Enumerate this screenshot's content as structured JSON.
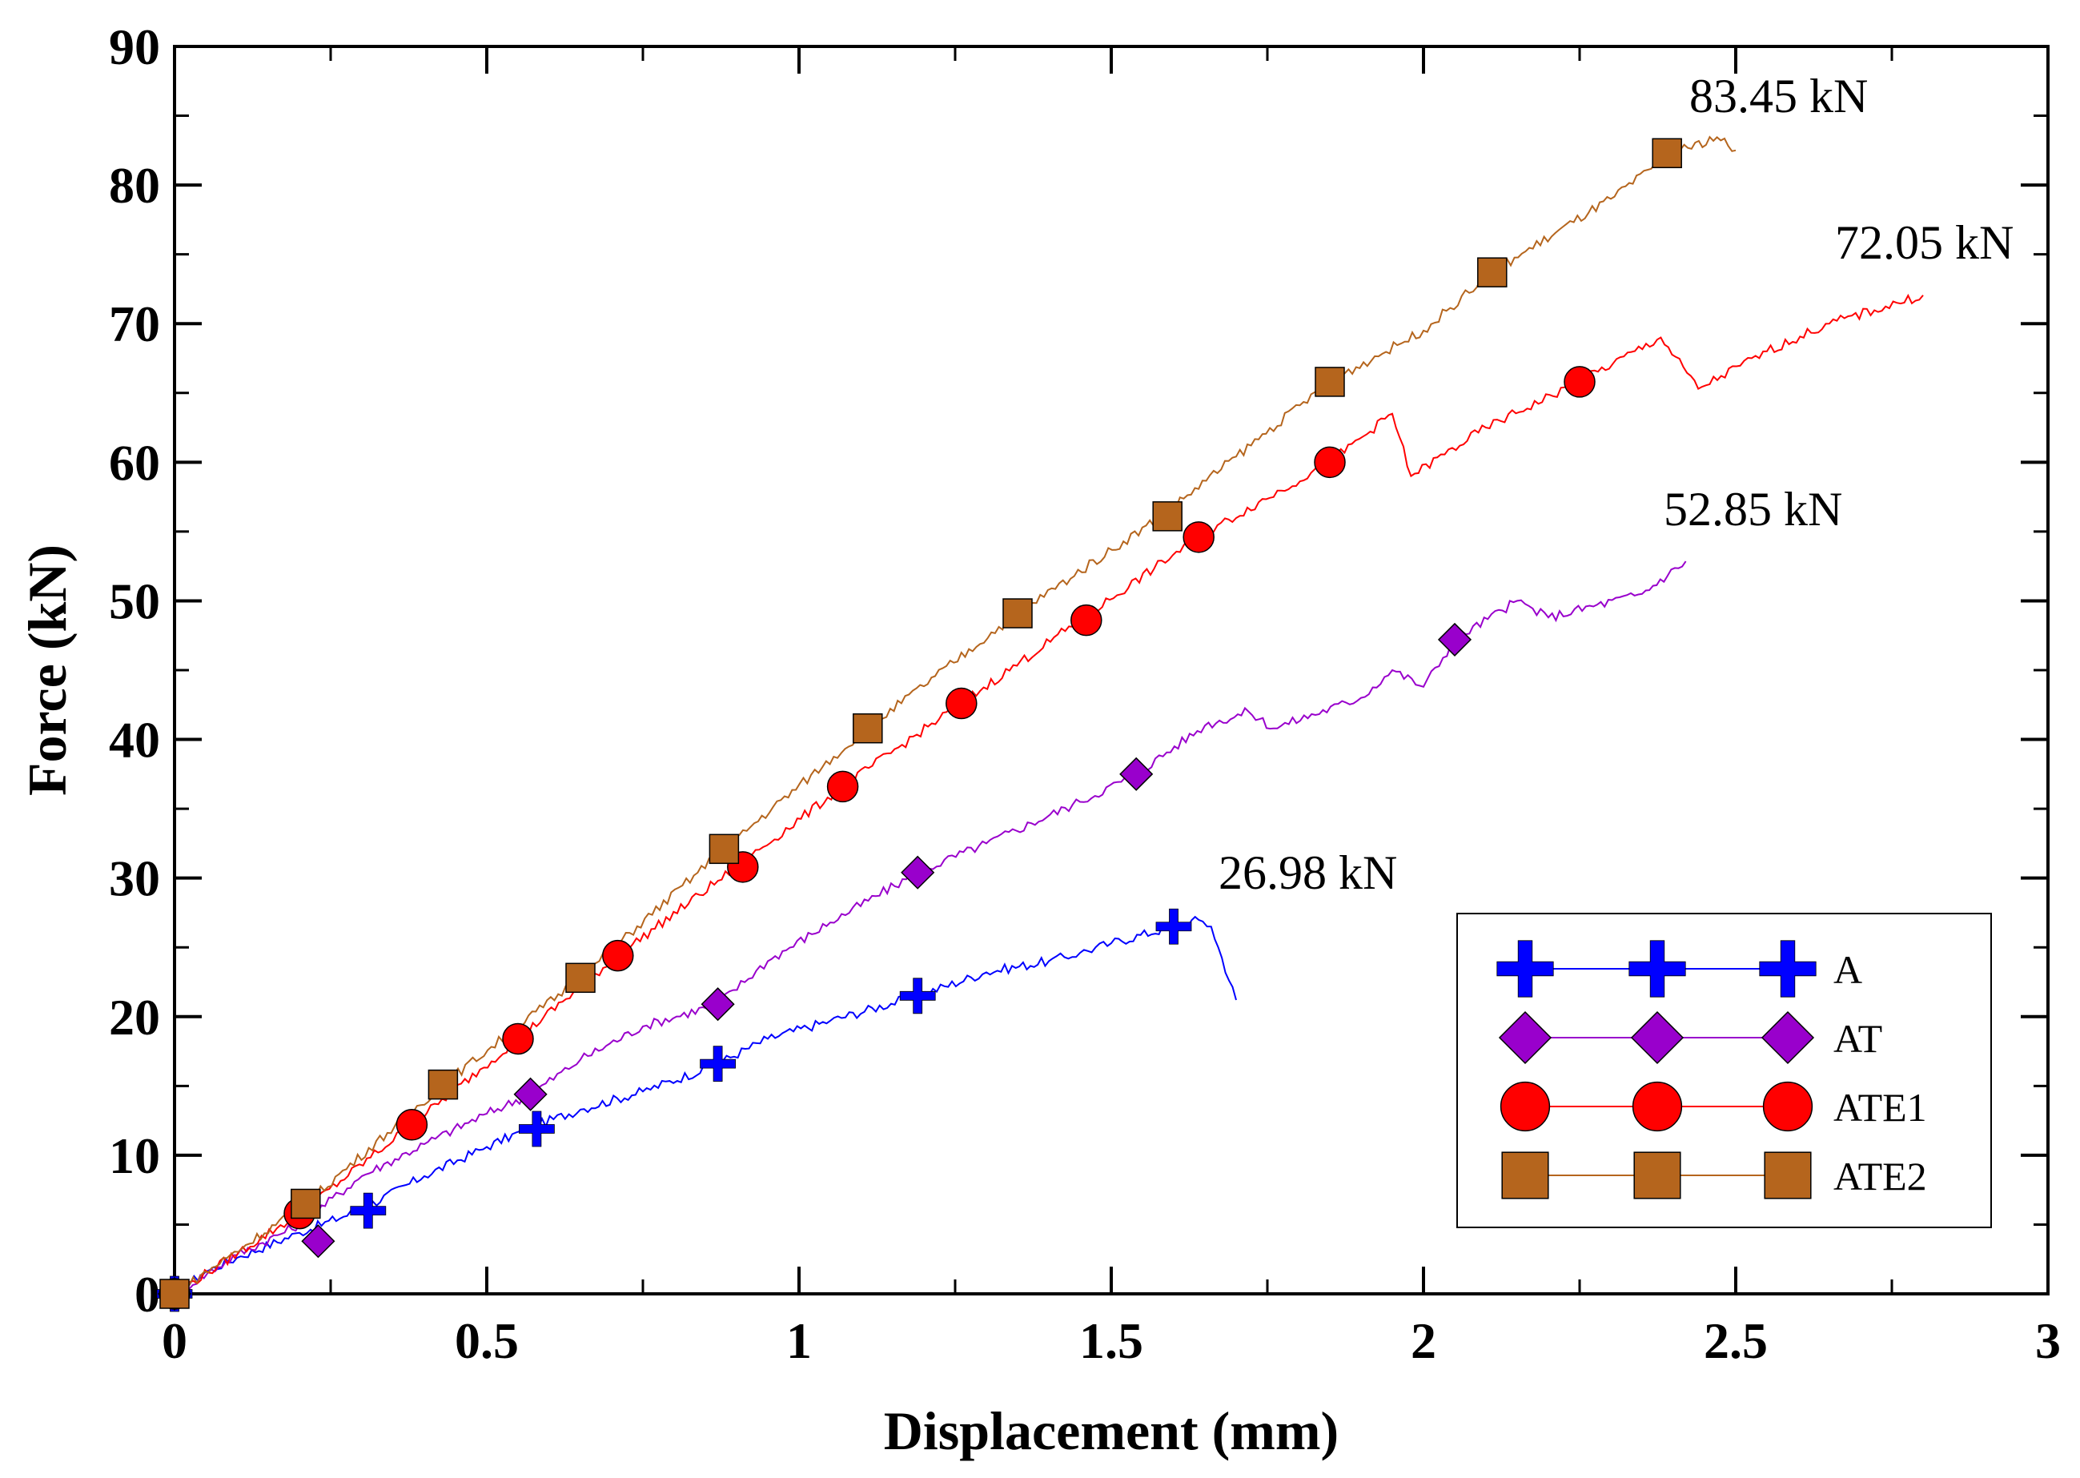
{
  "chart_data": {
    "type": "line",
    "title": "",
    "xlabel": "Displacement (mm)",
    "ylabel": "Force (kN)",
    "xlim": [
      0,
      3
    ],
    "ylim": [
      0,
      90
    ],
    "xticks": [
      {
        "value": 0,
        "label": "0"
      },
      {
        "value": 0.5,
        "label": "0.5"
      },
      {
        "value": 1,
        "label": "1"
      },
      {
        "value": 1.5,
        "label": "1.5"
      },
      {
        "value": 2,
        "label": "2"
      },
      {
        "value": 2.5,
        "label": "2.5"
      },
      {
        "value": 3,
        "label": "3"
      }
    ],
    "yticks": [
      {
        "value": 0,
        "label": "0"
      },
      {
        "value": 10,
        "label": "10"
      },
      {
        "value": 20,
        "label": "20"
      },
      {
        "value": 30,
        "label": "30"
      },
      {
        "value": 40,
        "label": "40"
      },
      {
        "value": 50,
        "label": "50"
      },
      {
        "value": 60,
        "label": "60"
      },
      {
        "value": 70,
        "label": "70"
      },
      {
        "value": 80,
        "label": "80"
      },
      {
        "value": 90,
        "label": "90"
      }
    ],
    "legend_position": "bottom-right",
    "grid": false,
    "series": [
      {
        "name": "A",
        "color": "#0000ff",
        "marker": "plus",
        "line": [
          [
            0,
            0
          ],
          [
            0.05,
            1.6
          ],
          [
            0.1,
            2.6
          ],
          [
            0.2,
            4.4
          ],
          [
            0.3,
            6.1
          ],
          [
            0.4,
            8.5
          ],
          [
            0.5,
            10.6
          ],
          [
            0.57,
            12.0
          ],
          [
            0.65,
            13.3
          ],
          [
            0.75,
            14.6
          ],
          [
            0.86,
            16.4
          ],
          [
            0.95,
            18.4
          ],
          [
            1.05,
            19.7
          ],
          [
            1.19,
            21.5
          ],
          [
            1.3,
            23.2
          ],
          [
            1.4,
            24.0
          ],
          [
            1.45,
            24.6
          ],
          [
            1.5,
            25.3
          ],
          [
            1.6,
            26.5
          ],
          [
            1.64,
            26.98
          ],
          [
            1.66,
            26.5
          ],
          [
            1.7,
            21.2
          ]
        ],
        "markers": [
          [
            0,
            0
          ],
          [
            0.31,
            6.0
          ],
          [
            0.58,
            11.9
          ],
          [
            0.87,
            16.6
          ],
          [
            1.19,
            21.5
          ],
          [
            1.6,
            26.5
          ]
        ]
      },
      {
        "name": "AT",
        "color": "#9900cc",
        "marker": "diamond",
        "line": [
          [
            0,
            0
          ],
          [
            0.1,
            2.8
          ],
          [
            0.2,
            5.0
          ],
          [
            0.3,
            8.5
          ],
          [
            0.4,
            10.8
          ],
          [
            0.5,
            13.0
          ],
          [
            0.57,
            14.4
          ],
          [
            0.65,
            16.9
          ],
          [
            0.75,
            19.3
          ],
          [
            0.87,
            20.9
          ],
          [
            0.95,
            24.0
          ],
          [
            1.05,
            26.8
          ],
          [
            1.19,
            30.4
          ],
          [
            1.3,
            32.5
          ],
          [
            1.45,
            35.5
          ],
          [
            1.54,
            37.5
          ],
          [
            1.65,
            41.0
          ],
          [
            1.72,
            42.0
          ],
          [
            1.76,
            40.8
          ],
          [
            1.9,
            43.0
          ],
          [
            1.95,
            45.0
          ],
          [
            2.0,
            43.8
          ],
          [
            2.05,
            47.2
          ],
          [
            2.15,
            50.0
          ],
          [
            2.2,
            48.8
          ],
          [
            2.35,
            50.5
          ],
          [
            2.42,
            52.85
          ]
        ],
        "markers": [
          [
            0,
            0
          ],
          [
            0.23,
            3.8
          ],
          [
            0.57,
            14.4
          ],
          [
            0.87,
            20.9
          ],
          [
            1.19,
            30.4
          ],
          [
            1.54,
            37.5
          ],
          [
            2.05,
            47.2
          ]
        ]
      },
      {
        "name": "ATE1",
        "color": "#ff0000",
        "marker": "circle",
        "line": [
          [
            0,
            0
          ],
          [
            0.2,
            5.8
          ],
          [
            0.38,
            12.2
          ],
          [
            0.55,
            18.4
          ],
          [
            0.71,
            24.4
          ],
          [
            0.9,
            30.8
          ],
          [
            1.07,
            36.6
          ],
          [
            1.26,
            42.6
          ],
          [
            1.45,
            48.6
          ],
          [
            1.64,
            54.6
          ],
          [
            1.85,
            60.0
          ],
          [
            1.95,
            63.5
          ],
          [
            1.98,
            59.0
          ],
          [
            2.1,
            62.5
          ],
          [
            2.25,
            65.8
          ],
          [
            2.38,
            69.0
          ],
          [
            2.44,
            65.3
          ],
          [
            2.55,
            68.0
          ],
          [
            2.65,
            70.0
          ],
          [
            2.8,
            72.05
          ]
        ],
        "markers": [
          [
            0,
            0
          ],
          [
            0.2,
            5.8
          ],
          [
            0.38,
            12.2
          ],
          [
            0.55,
            18.4
          ],
          [
            0.71,
            24.4
          ],
          [
            0.91,
            30.8
          ],
          [
            1.07,
            36.6
          ],
          [
            1.26,
            42.6
          ],
          [
            1.46,
            48.6
          ],
          [
            1.64,
            54.6
          ],
          [
            1.85,
            60.0
          ],
          [
            2.25,
            65.8
          ]
        ]
      },
      {
        "name": "ATE2",
        "color": "#b5651d",
        "marker": "square",
        "line": [
          [
            0,
            0
          ],
          [
            0.21,
            6.5
          ],
          [
            0.43,
            15.1
          ],
          [
            0.65,
            22.8
          ],
          [
            0.88,
            32.1
          ],
          [
            1.11,
            40.8
          ],
          [
            1.35,
            49.1
          ],
          [
            1.58,
            56.1
          ],
          [
            1.85,
            65.8
          ],
          [
            2.0,
            69.5
          ],
          [
            2.11,
            73.7
          ],
          [
            2.3,
            79.0
          ],
          [
            2.4,
            82.3
          ],
          [
            2.47,
            83.45
          ],
          [
            2.5,
            82.5
          ]
        ],
        "markers": [
          [
            0,
            0
          ],
          [
            0.21,
            6.5
          ],
          [
            0.43,
            15.1
          ],
          [
            0.65,
            22.8
          ],
          [
            0.88,
            32.1
          ],
          [
            1.11,
            40.8
          ],
          [
            1.35,
            49.1
          ],
          [
            1.59,
            56.1
          ],
          [
            1.85,
            65.8
          ],
          [
            2.11,
            73.7
          ],
          [
            2.39,
            82.3
          ]
        ]
      }
    ],
    "annotations": [
      {
        "text": "83.45 kN",
        "x": 2.43,
        "y": 86.0
      },
      {
        "text": "72.05 kN",
        "x": 2.66,
        "y": 75.5
      },
      {
        "text": "52.85 kN",
        "x": 2.37,
        "y": 56.5
      },
      {
        "text": "26.98 kN",
        "x": 1.67,
        "y": 30.2
      }
    ]
  }
}
